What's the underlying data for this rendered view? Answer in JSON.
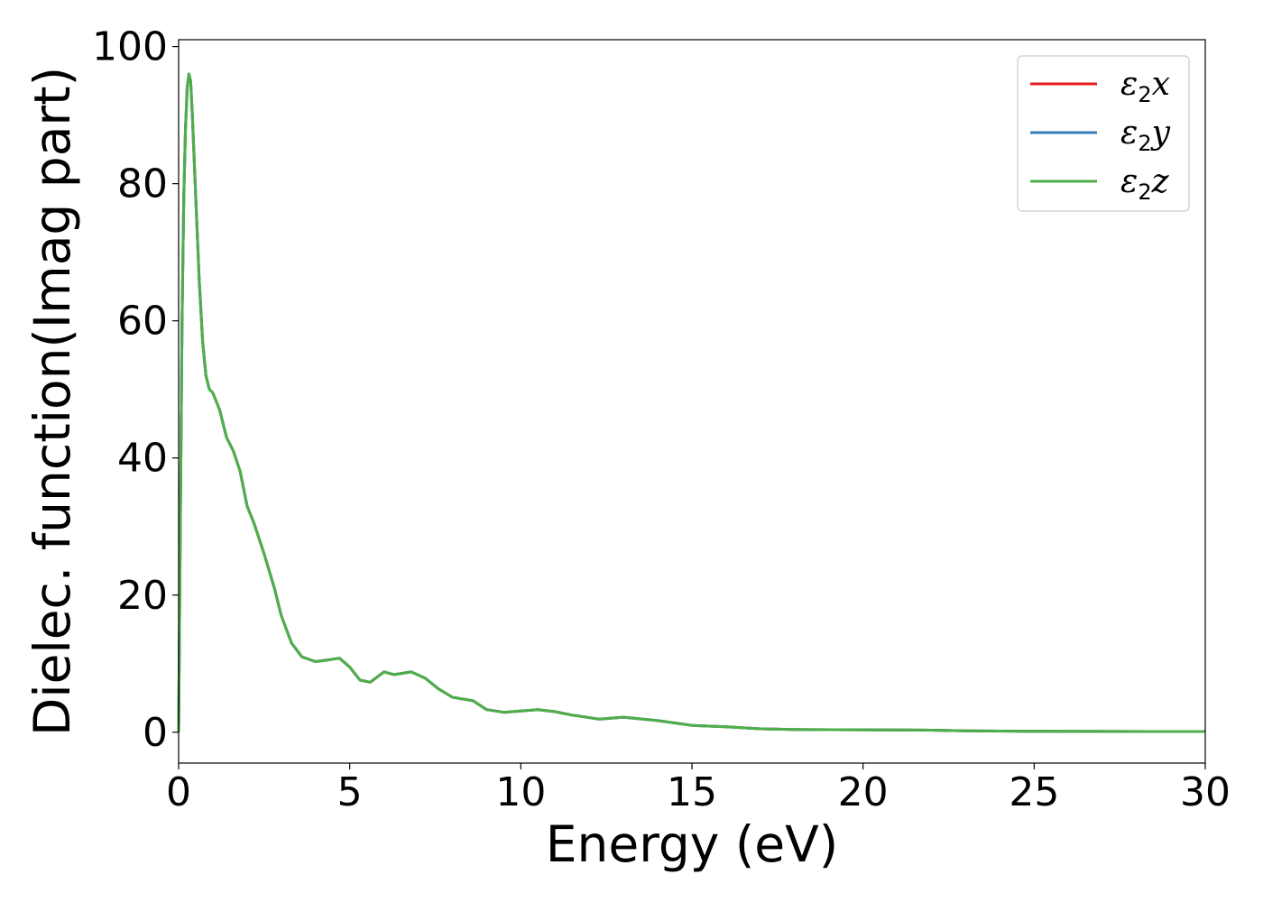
{
  "chart_data": {
    "type": "line",
    "xlabel": "Energy (eV)",
    "ylabel": "Dielec. function(Imag part)",
    "xlim": [
      0,
      30
    ],
    "ylim": [
      -4.5,
      101
    ],
    "xticks": [
      0,
      5,
      10,
      15,
      20,
      25,
      30
    ],
    "yticks": [
      0,
      20,
      40,
      60,
      80,
      100
    ],
    "grid": false,
    "legend": "top-right",
    "series": [
      {
        "name": "ε2x",
        "legend_symbol": "ε",
        "legend_subscript": "2",
        "legend_suffix": "x",
        "color": "#e41a1c",
        "x": [
          0,
          0.05,
          0.1,
          0.15,
          0.2,
          0.25,
          0.3,
          0.35,
          0.4,
          0.5,
          0.6,
          0.7,
          0.8,
          0.9,
          1.0,
          1.2,
          1.4,
          1.6,
          1.8,
          2.0,
          2.2,
          2.5,
          2.8,
          3.0,
          3.3,
          3.6,
          4.0,
          4.3,
          4.7,
          5.0,
          5.3,
          5.6,
          6.0,
          6.3,
          6.8,
          7.2,
          7.6,
          8.0,
          8.6,
          9.0,
          9.5,
          10.0,
          10.5,
          11.0,
          11.5,
          12.3,
          13.0,
          14.0,
          15.0,
          16.0,
          17.0,
          18.0,
          20.0,
          22.0,
          23.0,
          25.0,
          27.0,
          30.0
        ],
        "values": [
          0,
          30,
          60,
          78,
          88,
          94,
          96,
          95,
          90,
          78,
          66,
          57,
          52,
          50,
          49.5,
          47,
          43,
          41,
          38,
          33,
          30.5,
          26,
          21,
          17,
          13,
          11,
          10.3,
          10.5,
          10.8,
          9.5,
          7.6,
          7.3,
          8.8,
          8.4,
          8.8,
          7.9,
          6.3,
          5.1,
          4.6,
          3.3,
          2.9,
          3.1,
          3.3,
          3.0,
          2.5,
          1.9,
          2.2,
          1.7,
          1.0,
          0.8,
          0.5,
          0.4,
          0.35,
          0.3,
          0.2,
          0.15,
          0.12,
          0.1
        ]
      },
      {
        "name": "ε2y",
        "legend_symbol": "ε",
        "legend_subscript": "2",
        "legend_suffix": "y",
        "color": "#377eb8",
        "x": [
          0,
          0.05,
          0.1,
          0.15,
          0.2,
          0.25,
          0.3,
          0.35,
          0.4,
          0.5,
          0.6,
          0.7,
          0.8,
          0.9,
          1.0,
          1.2,
          1.4,
          1.6,
          1.8,
          2.0,
          2.2,
          2.5,
          2.8,
          3.0,
          3.3,
          3.6,
          4.0,
          4.3,
          4.7,
          5.0,
          5.3,
          5.6,
          6.0,
          6.3,
          6.8,
          7.2,
          7.6,
          8.0,
          8.6,
          9.0,
          9.5,
          10.0,
          10.5,
          11.0,
          11.5,
          12.3,
          13.0,
          14.0,
          15.0,
          16.0,
          17.0,
          18.0,
          20.0,
          22.0,
          23.0,
          25.0,
          27.0,
          30.0
        ],
        "values": [
          0,
          30,
          60,
          78,
          88,
          94,
          96,
          95,
          90,
          78,
          66,
          57,
          52,
          50,
          49.5,
          47,
          43,
          41,
          38,
          33,
          30.5,
          26,
          21,
          17,
          13,
          11,
          10.3,
          10.5,
          10.8,
          9.5,
          7.6,
          7.3,
          8.8,
          8.4,
          8.8,
          7.9,
          6.3,
          5.1,
          4.6,
          3.3,
          2.9,
          3.1,
          3.3,
          3.0,
          2.5,
          1.9,
          2.2,
          1.7,
          1.0,
          0.8,
          0.5,
          0.4,
          0.35,
          0.3,
          0.2,
          0.15,
          0.12,
          0.1
        ]
      },
      {
        "name": "ε2z",
        "legend_symbol": "ε",
        "legend_subscript": "2",
        "legend_suffix": "z",
        "color": "#4daf4a",
        "x": [
          0,
          0.05,
          0.1,
          0.15,
          0.2,
          0.25,
          0.3,
          0.35,
          0.4,
          0.5,
          0.6,
          0.7,
          0.8,
          0.9,
          1.0,
          1.2,
          1.4,
          1.6,
          1.8,
          2.0,
          2.2,
          2.5,
          2.8,
          3.0,
          3.3,
          3.6,
          4.0,
          4.3,
          4.7,
          5.0,
          5.3,
          5.6,
          6.0,
          6.3,
          6.8,
          7.2,
          7.6,
          8.0,
          8.6,
          9.0,
          9.5,
          10.0,
          10.5,
          11.0,
          11.5,
          12.3,
          13.0,
          14.0,
          15.0,
          16.0,
          17.0,
          18.0,
          20.0,
          22.0,
          23.0,
          25.0,
          27.0,
          30.0
        ],
        "values": [
          0,
          30,
          60,
          78,
          88,
          94,
          96,
          95,
          90,
          78,
          66,
          57,
          52,
          50,
          49.5,
          47,
          43,
          41,
          38,
          33,
          30.5,
          26,
          21,
          17,
          13,
          11,
          10.3,
          10.5,
          10.8,
          9.5,
          7.6,
          7.3,
          8.8,
          8.4,
          8.8,
          7.9,
          6.3,
          5.1,
          4.6,
          3.3,
          2.9,
          3.1,
          3.3,
          3.0,
          2.5,
          1.9,
          2.2,
          1.7,
          1.0,
          0.8,
          0.5,
          0.4,
          0.35,
          0.3,
          0.2,
          0.15,
          0.12,
          0.1
        ]
      }
    ]
  }
}
